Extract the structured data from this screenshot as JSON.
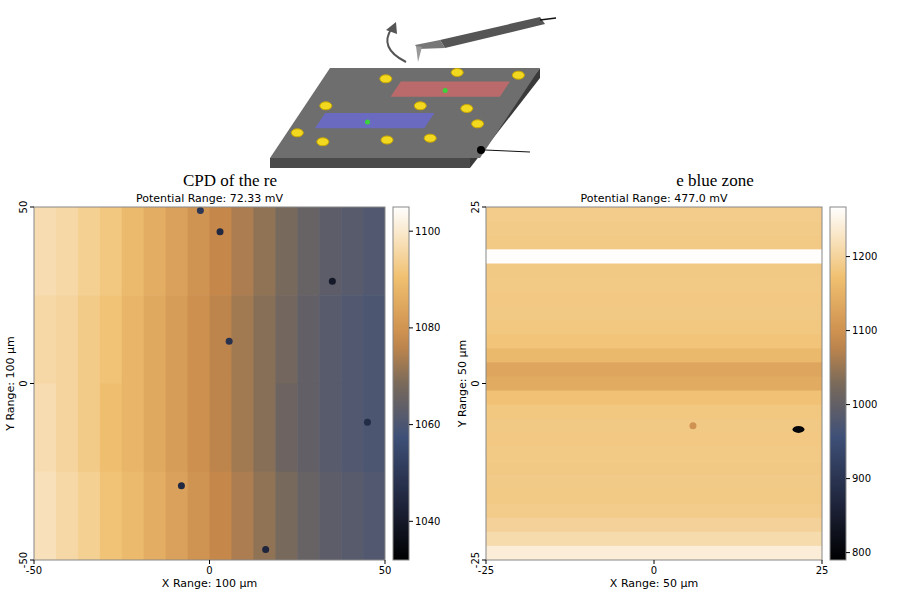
{
  "captions": [
    "CPD of the re",
    "e blue zone"
  ],
  "chart_data": [
    {
      "type": "heatmap",
      "title": "Potential Range: 72.33 mV",
      "x_label": "X Range: 100 µm",
      "y_label": "Y Range: 100 µm",
      "xlim": [
        -50,
        50
      ],
      "xticks": [
        -50,
        0,
        50
      ],
      "ylim": [
        -50,
        50
      ],
      "yticks": [
        -50,
        0,
        50
      ],
      "cells": [
        [
          1097,
          1096,
          1094,
          1092,
          1089,
          1086,
          1083,
          1080,
          1077,
          1074,
          1071,
          1068,
          1065,
          1063,
          1062,
          1061
        ],
        [
          1096,
          1095,
          1093,
          1091,
          1088,
          1085,
          1082,
          1079,
          1076,
          1073,
          1070,
          1067,
          1064,
          1062,
          1061,
          1060
        ],
        [
          1097,
          1095,
          1093,
          1090,
          1088,
          1085,
          1082,
          1079,
          1076,
          1073,
          1070,
          1066,
          1064,
          1062,
          1061,
          1060
        ],
        [
          1098,
          1096,
          1094,
          1091,
          1089,
          1086,
          1083,
          1080,
          1077,
          1074,
          1071,
          1068,
          1065,
          1063,
          1062,
          1061
        ]
      ],
      "spots": {
        "x": [
          3,
          -2.6,
          35,
          5.6,
          45,
          -8,
          16
        ],
        "y": [
          43,
          49,
          29,
          12,
          -11,
          -29,
          -47
        ],
        "values": [
          1045,
          1050,
          1040,
          1048,
          1046,
          1045,
          1044
        ]
      },
      "colorbar": {
        "range": [
          1032,
          1105
        ],
        "ticks": [
          1040,
          1060,
          1080,
          1100
        ]
      }
    },
    {
      "type": "heatmap",
      "title": "Potential Range: 477.0 mV",
      "x_label": "X Range: 50 µm",
      "y_label": "Y Range: 50 µm",
      "xlim": [
        -25,
        25
      ],
      "xticks": [
        -25,
        0,
        25
      ],
      "ylim": [
        -25,
        25
      ],
      "yticks": [
        -25,
        0,
        25
      ],
      "cells": [
        [
          1190
        ],
        [
          1188
        ],
        [
          1186
        ],
        [
          1265
        ],
        [
          1185
        ],
        [
          1186
        ],
        [
          1184
        ],
        [
          1185
        ],
        [
          1183
        ],
        [
          1178
        ],
        [
          1160
        ],
        [
          1130
        ],
        [
          1140
        ],
        [
          1175
        ],
        [
          1183
        ],
        [
          1185
        ],
        [
          1184
        ],
        [
          1186
        ],
        [
          1185
        ],
        [
          1187
        ],
        [
          1186
        ],
        [
          1190
        ],
        [
          1198
        ],
        [
          1212
        ],
        [
          1240
        ]
      ],
      "spots": {
        "x": [
          21.5,
          5.8
        ],
        "y": [
          -6.5,
          -6
        ],
        "values": [
          800,
          1100
        ]
      },
      "colorbar": {
        "range": [
          790,
          1267
        ],
        "ticks": [
          800,
          900,
          1000,
          1100,
          1200
        ]
      }
    }
  ]
}
